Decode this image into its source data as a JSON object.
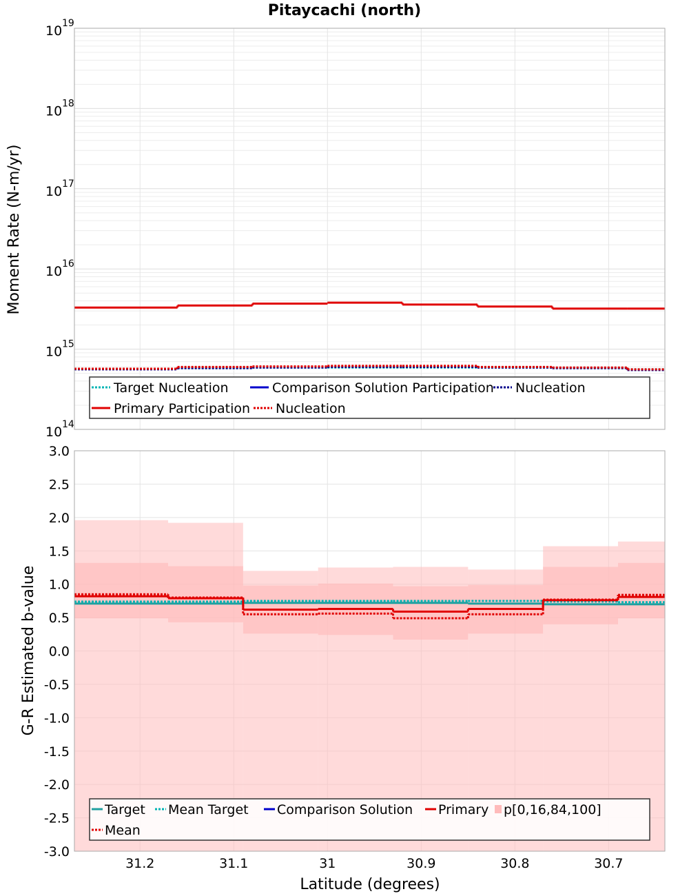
{
  "title": "Pitaycachi (north)",
  "chart_data": [
    {
      "type": "line",
      "panel": "top",
      "title": "Pitaycachi (north)",
      "xlabel": "Latitude (degrees)",
      "ylabel": "Moment Rate (N-m/yr)",
      "yscale": "log",
      "ylim": [
        100000000000000.0,
        1e+19
      ],
      "xlim": [
        31.27,
        30.64
      ],
      "x_reversed": true,
      "grid": true,
      "legend_placement": "bottom-center",
      "y_ticks": [
        {
          "base": "10",
          "exp": "14",
          "value": 14
        },
        {
          "base": "10",
          "exp": "15",
          "value": 15
        },
        {
          "base": "10",
          "exp": "16",
          "value": 16
        },
        {
          "base": "10",
          "exp": "17",
          "value": 17
        },
        {
          "base": "10",
          "exp": "18",
          "value": 18
        },
        {
          "base": "10",
          "exp": "19",
          "value": 19
        }
      ],
      "bin_edges": [
        31.27,
        31.16,
        31.08,
        31.0,
        30.92,
        30.84,
        30.76,
        30.68,
        30.64
      ],
      "series": [
        {
          "name": "Target Nucleation",
          "color": "#00b4b4",
          "dash": "dotted",
          "values": [
            570000000000000.0,
            580000000000000.0,
            590000000000000.0,
            590000000000000.0,
            590000000000000.0,
            590000000000000.0,
            580000000000000.0,
            560000000000000.0
          ]
        },
        {
          "name": "Comparison Solution Participation",
          "color": "#0000cc",
          "dash": "solid",
          "values": []
        },
        {
          "name": "Nucleation",
          "color": "#00008b",
          "dash": "dotted",
          "values": [
            560000000000000.0,
            580000000000000.0,
            590000000000000.0,
            600000000000000.0,
            600000000000000.0,
            590000000000000.0,
            580000000000000.0,
            550000000000000.0
          ]
        },
        {
          "name": "Primary Participation",
          "color": "#e00000",
          "dash": "solid",
          "values": [
            3300000000000000.0,
            3500000000000000.0,
            3700000000000000.0,
            3800000000000000.0,
            3600000000000000.0,
            3400000000000000.0,
            3200000000000000.0,
            3200000000000000.0
          ]
        },
        {
          "name": "Nucleation",
          "color": "#e00000",
          "dash": "dotted",
          "values": [
            570000000000000.0,
            600000000000000.0,
            610000000000000.0,
            620000000000000.0,
            620000000000000.0,
            600000000000000.0,
            590000000000000.0,
            560000000000000.0
          ]
        }
      ]
    },
    {
      "type": "line",
      "panel": "bottom",
      "xlabel": "Latitude (degrees)",
      "ylabel": "G-R Estimated b-value",
      "ylim": [
        -3.0,
        3.0
      ],
      "xlim": [
        31.27,
        30.64
      ],
      "x_reversed": true,
      "grid": true,
      "legend_placement": "bottom-center",
      "x_ticks": [
        "31.2",
        "31.1",
        "31",
        "30.9",
        "30.8",
        "30.7"
      ],
      "x_tick_values": [
        31.2,
        31.1,
        31.0,
        30.9,
        30.8,
        30.7
      ],
      "y_ticks": [
        "-3.0",
        "-2.5",
        "-2.0",
        "-1.5",
        "-1.0",
        "-0.5",
        "0.0",
        "0.5",
        "1.0",
        "1.5",
        "2.0",
        "2.5",
        "3.0"
      ],
      "y_tick_values": [
        -3.0,
        -2.5,
        -2.0,
        -1.5,
        -1.0,
        -0.5,
        0.0,
        0.5,
        1.0,
        1.5,
        2.0,
        2.5,
        3.0
      ],
      "bin_edges": [
        31.27,
        31.17,
        31.09,
        31.01,
        30.93,
        30.85,
        30.77,
        30.69,
        30.64
      ],
      "bands": {
        "name": "p[0,16,84,100]",
        "color": "#ffbbbb",
        "p0": [
          -3.0,
          -3.0,
          -3.0,
          -3.0,
          -3.0,
          -3.0,
          -3.0,
          -3.0
        ],
        "p16": [
          0.49,
          0.43,
          0.26,
          0.24,
          0.17,
          0.26,
          0.4,
          0.49
        ],
        "p84": [
          1.32,
          1.27,
          0.98,
          1.01,
          0.97,
          0.99,
          1.26,
          1.32
        ],
        "p100": [
          1.96,
          1.92,
          1.2,
          1.25,
          1.26,
          1.22,
          1.57,
          1.64
        ]
      },
      "series": [
        {
          "name": "Target",
          "color": "#20a0a0",
          "dash": "solid",
          "values": [
            0.71,
            0.71,
            0.72,
            0.72,
            0.72,
            0.71,
            0.7,
            0.7
          ]
        },
        {
          "name": "Mean Target",
          "color": "#00b4b4",
          "dash": "dotted",
          "values": [
            0.74,
            0.74,
            0.75,
            0.75,
            0.75,
            0.75,
            0.74,
            0.73
          ]
        },
        {
          "name": "Comparison Solution",
          "color": "#0000cc",
          "dash": "solid",
          "values": []
        },
        {
          "name": "Primary",
          "color": "#e00000",
          "dash": "solid",
          "values": [
            0.82,
            0.79,
            0.62,
            0.63,
            0.59,
            0.63,
            0.76,
            0.81
          ]
        },
        {
          "name": "Mean",
          "color": "#e00000",
          "dash": "dotted",
          "values": [
            0.85,
            0.8,
            0.55,
            0.56,
            0.49,
            0.55,
            0.77,
            0.84
          ]
        }
      ]
    }
  ]
}
